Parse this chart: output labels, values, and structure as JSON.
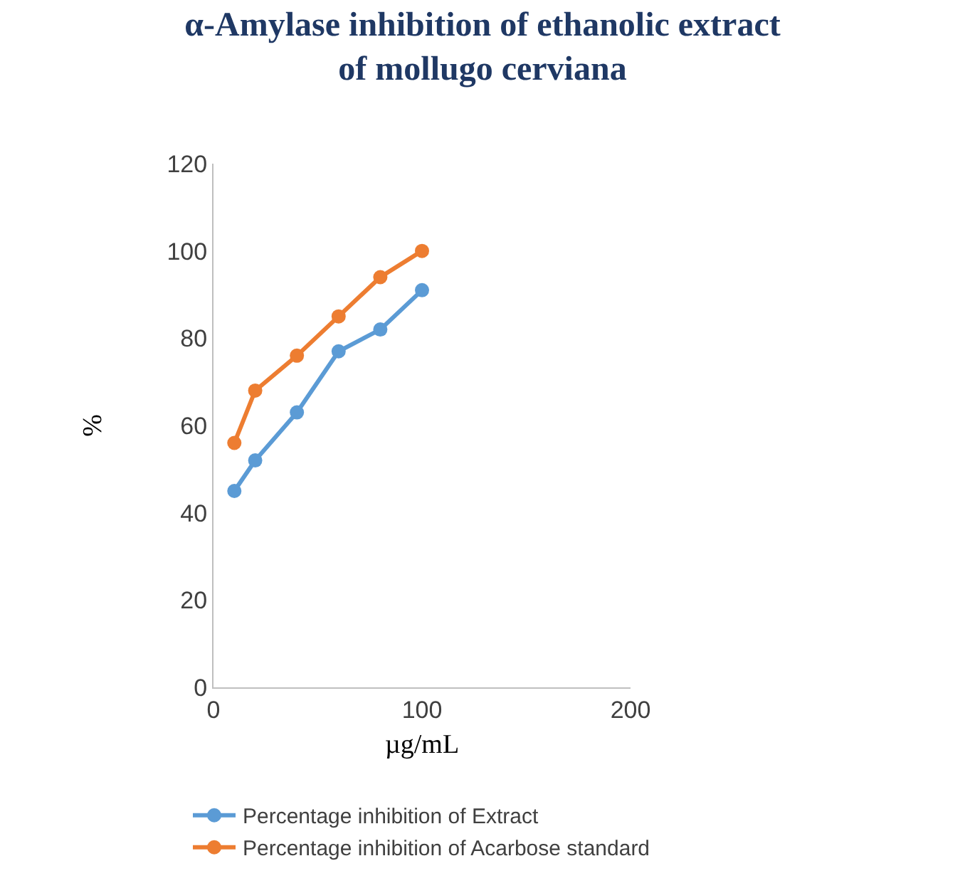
{
  "chart_data": {
    "type": "line",
    "title": "α-Amylase inhibition of ethanolic extract of mollugo cerviana",
    "xlabel": "µg/mL",
    "ylabel": "%",
    "x": [
      10,
      20,
      40,
      60,
      80,
      100
    ],
    "series": [
      {
        "name": "Percentage inhibition of Extract",
        "color": "#5b9bd5",
        "values": [
          45,
          52,
          63,
          77,
          82,
          91
        ]
      },
      {
        "name": "Percentage inhibition of Acarbose standard",
        "color": "#ed7d31",
        "values": [
          56,
          68,
          76,
          85,
          94,
          100
        ]
      }
    ],
    "xlim": [
      0,
      200
    ],
    "xticks": [
      0,
      100,
      200
    ],
    "ylim": [
      0,
      120
    ],
    "yticks": [
      0,
      20,
      40,
      60,
      80,
      100,
      120
    ],
    "grid": false,
    "legend": "bottom",
    "marker": "circle",
    "line_style": "solid"
  }
}
